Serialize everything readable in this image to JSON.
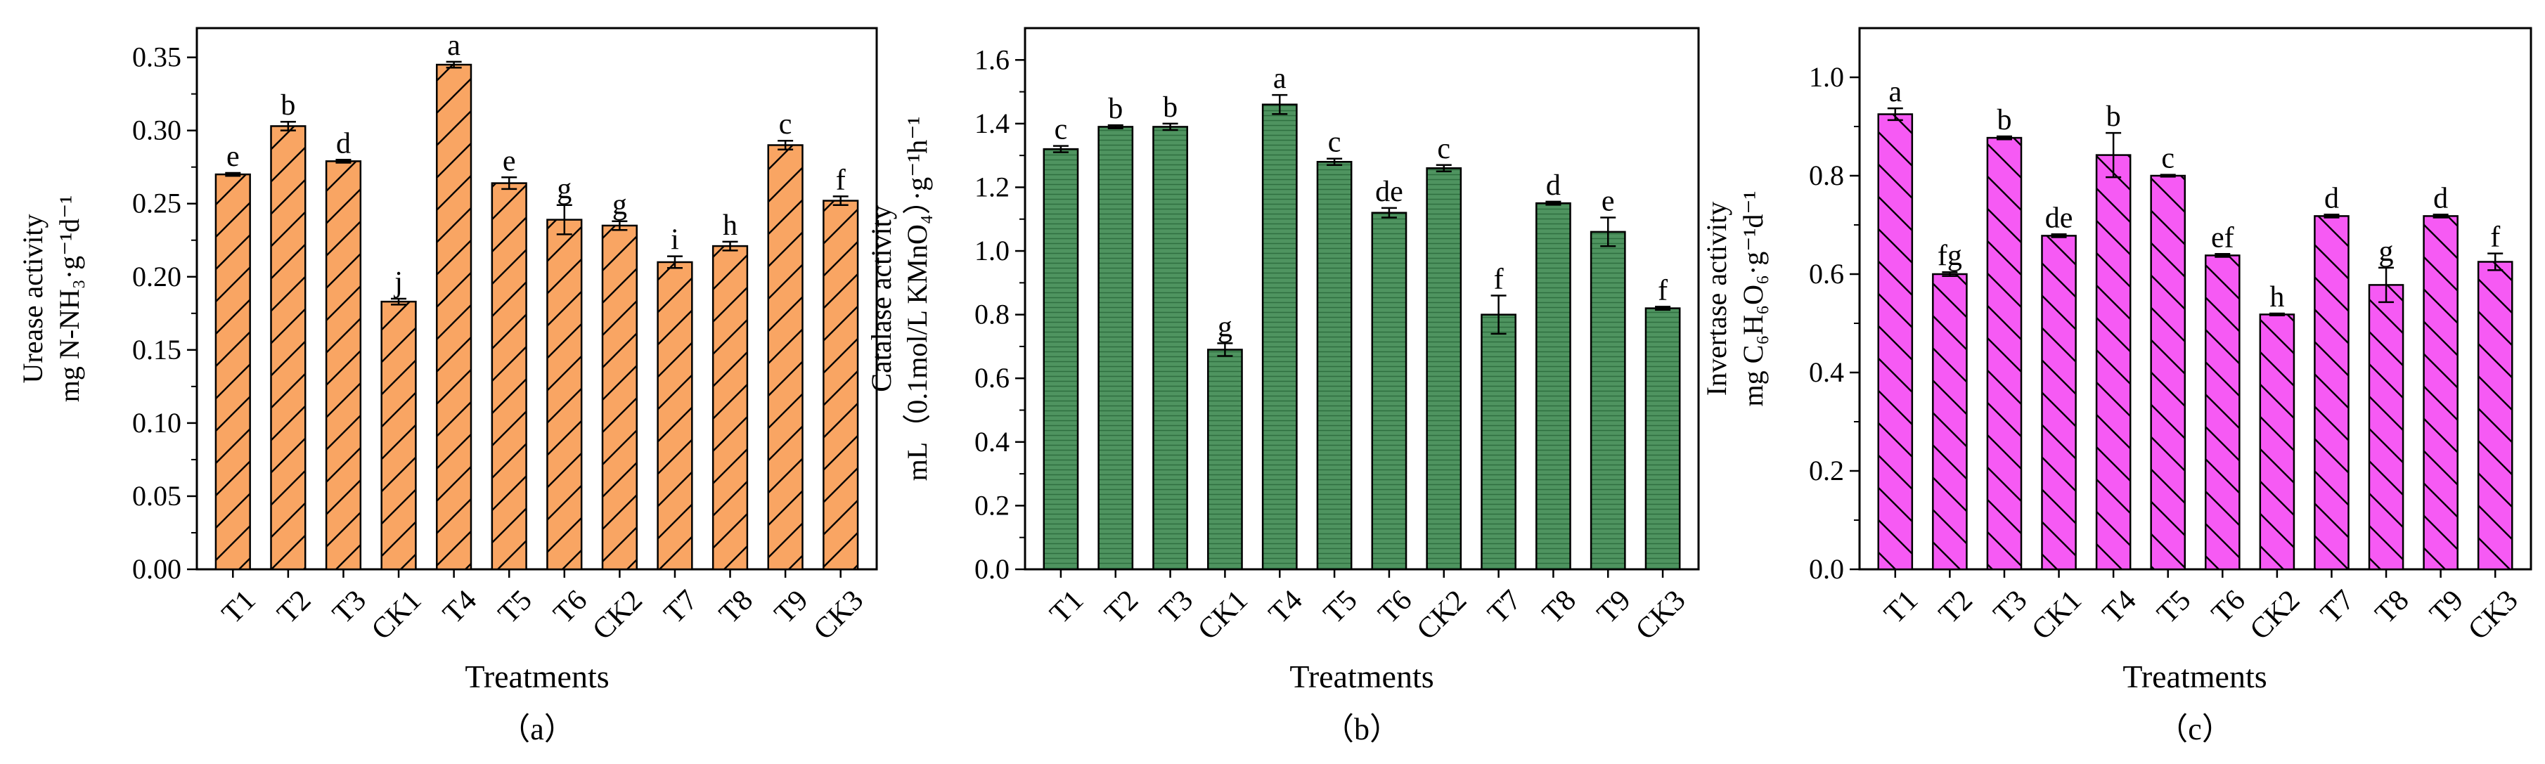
{
  "chart_data": [
    {
      "type": "bar",
      "panel_label": "（a）",
      "xlabel": "Treatments",
      "ylabel_line1": "Urease activity",
      "ylabel_line2": "mg N-NH₃·g⁻¹d⁻¹",
      "ylim": [
        0,
        0.37
      ],
      "yticks": [
        "0.00",
        "0.05",
        "0.10",
        "0.15",
        "0.20",
        "0.25",
        "0.30",
        "0.35"
      ],
      "ytick_values": [
        0,
        0.05,
        0.1,
        0.15,
        0.2,
        0.25,
        0.3,
        0.35
      ],
      "categories": [
        "T1",
        "T2",
        "T3",
        "CK1",
        "T4",
        "T5",
        "T6",
        "CK2",
        "T7",
        "T8",
        "T9",
        "CK3"
      ],
      "values": [
        0.27,
        0.303,
        0.279,
        0.183,
        0.345,
        0.264,
        0.239,
        0.235,
        0.21,
        0.221,
        0.29,
        0.252
      ],
      "errors": [
        0.001,
        0.003,
        0.001,
        0.002,
        0.002,
        0.004,
        0.01,
        0.003,
        0.004,
        0.003,
        0.003,
        0.003
      ],
      "letters": [
        "e",
        "b",
        "d",
        "j",
        "a",
        "e",
        "g",
        "g",
        "i",
        "h",
        "c",
        "f"
      ],
      "color": "#F9A563",
      "hatch": "forward"
    },
    {
      "type": "bar",
      "panel_label": "（b）",
      "xlabel": "Treatments",
      "ylabel_line1": "Catalase activity",
      "ylabel_line2": "mL（0.1mol/L KMnO₄）·g⁻¹h⁻¹",
      "ylim": [
        0,
        1.7
      ],
      "yticks": [
        "0.0",
        "0.2",
        "0.4",
        "0.6",
        "0.8",
        "1.0",
        "1.2",
        "1.4",
        "1.6"
      ],
      "ytick_values": [
        0,
        0.2,
        0.4,
        0.6,
        0.8,
        1.0,
        1.2,
        1.4,
        1.6
      ],
      "categories": [
        "T1",
        "T2",
        "T3",
        "CK1",
        "T4",
        "T5",
        "T6",
        "CK2",
        "T7",
        "T8",
        "T9",
        "CK3"
      ],
      "values": [
        1.32,
        1.39,
        1.39,
        0.69,
        1.46,
        1.28,
        1.12,
        1.26,
        0.8,
        1.15,
        1.06,
        0.82
      ],
      "errors": [
        0.01,
        0.005,
        0.01,
        0.02,
        0.03,
        0.01,
        0.015,
        0.01,
        0.06,
        0.005,
        0.045,
        0.005
      ],
      "letters": [
        "c",
        "b",
        "b",
        "g",
        "a",
        "c",
        "de",
        "c",
        "f",
        "d",
        "e",
        "f"
      ],
      "color": "#4F9460",
      "hatch": "horizontal"
    },
    {
      "type": "bar",
      "panel_label": "（c）",
      "xlabel": "Treatments",
      "ylabel_line1": "Invertase activity",
      "ylabel_line2": "mg C₆H₆O₆·g⁻¹d⁻¹",
      "ylim": [
        0,
        1.1
      ],
      "yticks": [
        "0.0",
        "0.2",
        "0.4",
        "0.6",
        "0.8",
        "1.0"
      ],
      "ytick_values": [
        0,
        0.2,
        0.4,
        0.6,
        0.8,
        1.0
      ],
      "categories": [
        "T1",
        "T2",
        "T3",
        "CK1",
        "T4",
        "T5",
        "T6",
        "CK2",
        "T7",
        "T8",
        "T9",
        "CK3"
      ],
      "values": [
        0.925,
        0.6,
        0.877,
        0.678,
        0.842,
        0.8,
        0.638,
        0.518,
        0.718,
        0.578,
        0.718,
        0.625
      ],
      "errors": [
        0.012,
        0.004,
        0.003,
        0.003,
        0.045,
        0.002,
        0.003,
        0.002,
        0.003,
        0.035,
        0.003,
        0.017
      ],
      "letters": [
        "a",
        "fg",
        "b",
        "de",
        "b",
        "c",
        "ef",
        "h",
        "d",
        "g",
        "d",
        "f"
      ],
      "color": "#F65AF4",
      "hatch": "backward"
    }
  ]
}
